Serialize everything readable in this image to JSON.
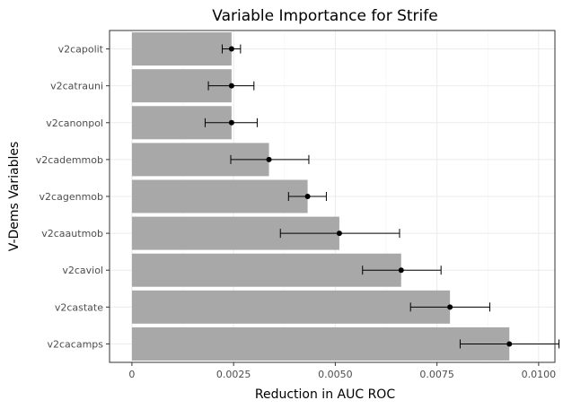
{
  "chart_data": {
    "type": "bar",
    "orientation": "horizontal",
    "title": "Variable Importance for Strife",
    "xlabel": "Reduction in AUC ROC",
    "ylabel": "V-Dems Variables",
    "xlim": [
      -0.00055,
      0.0104
    ],
    "xticks": [
      0,
      0.0025,
      0.005,
      0.0075,
      0.01
    ],
    "xtick_labels": [
      "0",
      "0.0025",
      "0.0050",
      "0.0075",
      "0.0100"
    ],
    "categories": [
      "v2capolit",
      "v2catrauni",
      "v2canonpol",
      "v2cademmob",
      "v2cagenmob",
      "v2caautmob",
      "v2caviol",
      "v2castate",
      "v2cacamps"
    ],
    "values": [
      0.00245,
      0.00245,
      0.00245,
      0.00337,
      0.00432,
      0.0051,
      0.00662,
      0.00782,
      0.00928
    ],
    "error_low": [
      0.00222,
      0.00188,
      0.0018,
      0.00243,
      0.00385,
      0.00365,
      0.00567,
      0.00685,
      0.00807
    ],
    "error_high": [
      0.00267,
      0.003,
      0.00308,
      0.00435,
      0.00478,
      0.00658,
      0.0076,
      0.0088,
      0.0105
    ],
    "bar_color": "#a8a8a8",
    "point_color": "#000000",
    "grid": true,
    "legend": "none"
  }
}
